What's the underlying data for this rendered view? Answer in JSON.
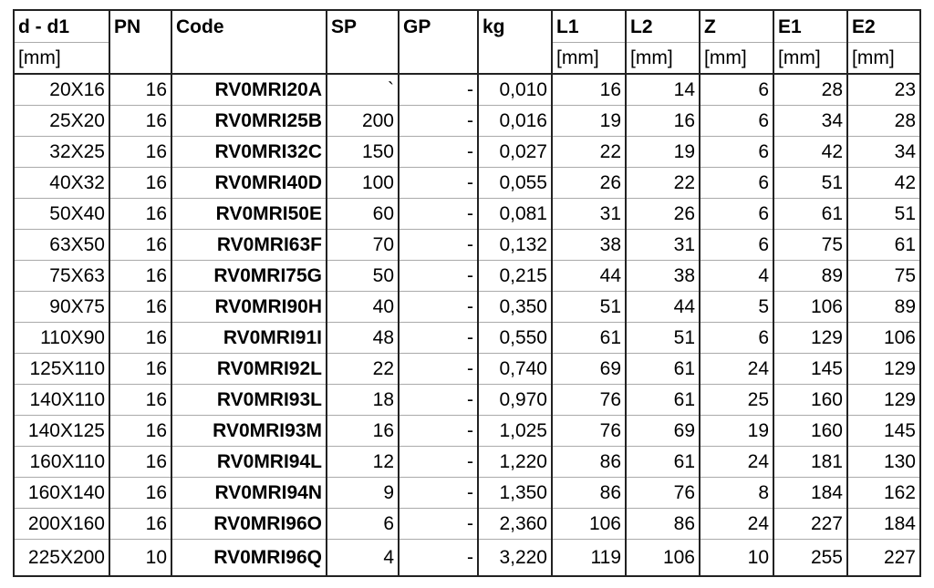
{
  "header": {
    "columns": [
      "d - d1",
      "PN",
      "Code",
      "SP",
      "GP",
      "kg",
      "L1",
      "L2",
      "Z",
      "E1",
      "E2"
    ],
    "units": [
      "[mm]",
      "",
      "",
      "",
      "",
      "",
      "[mm]",
      "[mm]",
      "[mm]",
      "[mm]",
      "[mm]"
    ]
  },
  "rows": [
    [
      "20X16",
      "16",
      "RV0MRI20A",
      "`",
      "-",
      "0,010",
      "16",
      "14",
      "6",
      "28",
      "23"
    ],
    [
      "25X20",
      "16",
      "RV0MRI25B",
      "200",
      "-",
      "0,016",
      "19",
      "16",
      "6",
      "34",
      "28"
    ],
    [
      "32X25",
      "16",
      "RV0MRI32C",
      "150",
      "-",
      "0,027",
      "22",
      "19",
      "6",
      "42",
      "34"
    ],
    [
      "40X32",
      "16",
      "RV0MRI40D",
      "100",
      "-",
      "0,055",
      "26",
      "22",
      "6",
      "51",
      "42"
    ],
    [
      "50X40",
      "16",
      "RV0MRI50E",
      "60",
      "-",
      "0,081",
      "31",
      "26",
      "6",
      "61",
      "51"
    ],
    [
      "63X50",
      "16",
      "RV0MRI63F",
      "70",
      "-",
      "0,132",
      "38",
      "31",
      "6",
      "75",
      "61"
    ],
    [
      "75X63",
      "16",
      "RV0MRI75G",
      "50",
      "-",
      "0,215",
      "44",
      "38",
      "4",
      "89",
      "75"
    ],
    [
      "90X75",
      "16",
      "RV0MRI90H",
      "40",
      "-",
      "0,350",
      "51",
      "44",
      "5",
      "106",
      "89"
    ],
    [
      "110X90",
      "16",
      "RV0MRI91I",
      "48",
      "-",
      "0,550",
      "61",
      "51",
      "6",
      "129",
      "106"
    ],
    [
      "125X110",
      "16",
      "RV0MRI92L",
      "22",
      "-",
      "0,740",
      "69",
      "61",
      "24",
      "145",
      "129"
    ],
    [
      "140X110",
      "16",
      "RV0MRI93L",
      "18",
      "-",
      "0,970",
      "76",
      "61",
      "25",
      "160",
      "129"
    ],
    [
      "140X125",
      "16",
      "RV0MRI93M",
      "16",
      "-",
      "1,025",
      "76",
      "69",
      "19",
      "160",
      "145"
    ],
    [
      "160X110",
      "16",
      "RV0MRI94L",
      "12",
      "-",
      "1,220",
      "86",
      "61",
      "24",
      "181",
      "130"
    ],
    [
      "160X140",
      "16",
      "RV0MRI94N",
      "9",
      "-",
      "1,350",
      "86",
      "76",
      "8",
      "184",
      "162"
    ],
    [
      "200X160",
      "16",
      "RV0MRI96O",
      "6",
      "-",
      "2,360",
      "106",
      "86",
      "24",
      "227",
      "184"
    ],
    [
      "225X200",
      "10",
      "RV0MRI96Q",
      "4",
      "-",
      "3,220",
      "119",
      "106",
      "10",
      "255",
      "227"
    ]
  ]
}
